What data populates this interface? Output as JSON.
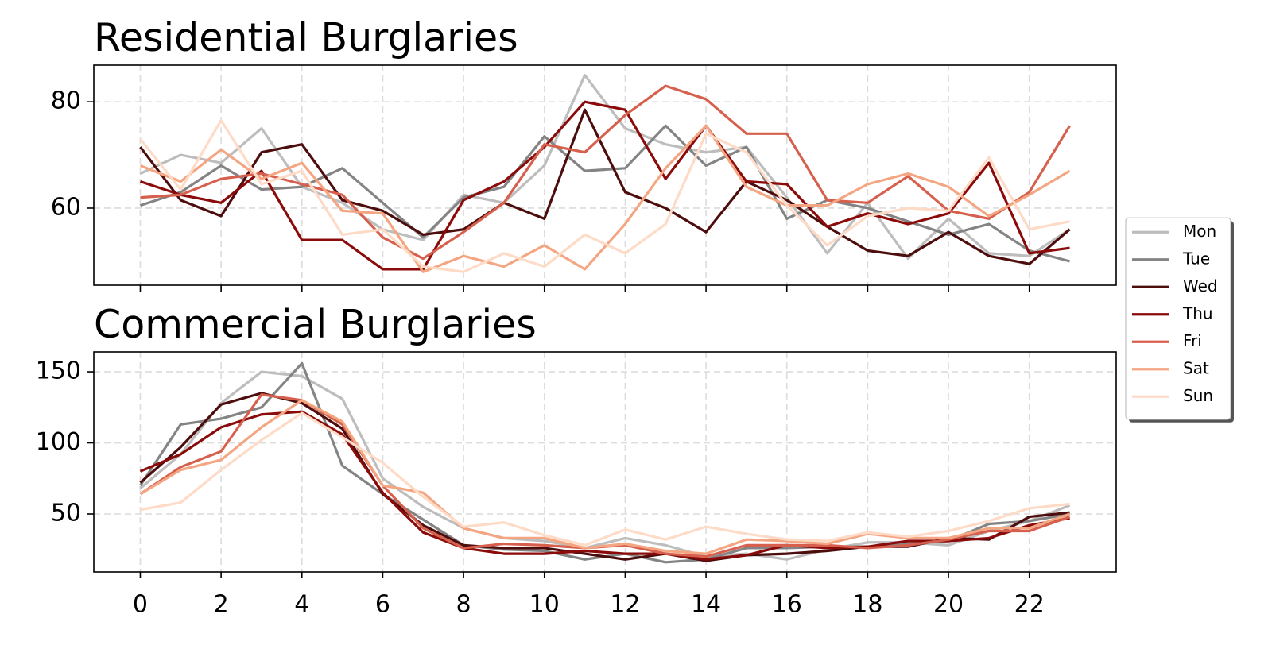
{
  "chart_data": [
    {
      "type": "line",
      "title": "Residential Burglaries",
      "x": [
        0,
        1,
        2,
        3,
        4,
        5,
        6,
        7,
        8,
        9,
        10,
        11,
        12,
        13,
        14,
        15,
        16,
        17,
        18,
        19,
        20,
        21,
        22,
        23
      ],
      "xlim": [
        -1.15,
        24.15
      ],
      "xticks": [
        0,
        2,
        4,
        6,
        8,
        10,
        12,
        14,
        16,
        18,
        20,
        22
      ],
      "ylim": [
        45.5,
        86.9
      ],
      "yticks": [
        60,
        80
      ],
      "grid": true,
      "legend": "right",
      "series": [
        {
          "name": "Mon",
          "color": "#bdbdbd",
          "values": [
            66.5,
            70,
            68.5,
            75,
            64,
            61,
            56,
            54,
            62.5,
            61,
            68,
            85,
            75,
            72,
            70.5,
            71.5,
            62,
            51.5,
            61,
            50.5,
            58,
            51.5,
            51,
            56
          ]
        },
        {
          "name": "Tue",
          "color": "#848484",
          "values": [
            60.5,
            63,
            68,
            63.5,
            64,
            67.5,
            61,
            54.5,
            62,
            64,
            73.5,
            67,
            67.5,
            75.5,
            68,
            71.5,
            58,
            61.5,
            60,
            57.5,
            55,
            57,
            52,
            50
          ]
        },
        {
          "name": "Wed",
          "color": "#4d0d0d",
          "values": [
            71.5,
            61.5,
            58.5,
            70.5,
            72,
            61.5,
            59.5,
            55,
            56,
            61,
            58,
            78.5,
            63,
            60,
            55.5,
            65,
            61.5,
            56.5,
            52,
            51,
            55.5,
            51,
            49.5,
            56
          ]
        },
        {
          "name": "Thu",
          "color": "#8b0a0a",
          "values": [
            65,
            62.5,
            61,
            67,
            54,
            54,
            48.5,
            48.5,
            61.5,
            65,
            71.5,
            80,
            78.5,
            65.5,
            75.5,
            65,
            64.5,
            56.5,
            59,
            57,
            59,
            68.5,
            51.5,
            52.5
          ]
        },
        {
          "name": "Fri",
          "color": "#d6604d",
          "values": [
            62,
            62.5,
            65.5,
            66.5,
            64.5,
            62.5,
            54.5,
            50.5,
            55.5,
            61,
            72,
            70.5,
            77.5,
            83,
            80.5,
            74,
            74,
            61.5,
            61,
            66,
            59.5,
            58,
            63,
            75.5
          ]
        },
        {
          "name": "Sat",
          "color": "#f4a582",
          "values": [
            68,
            65,
            71,
            65.5,
            68.5,
            59.5,
            59,
            48,
            51,
            49,
            53,
            48.5,
            57,
            67.5,
            75.5,
            64,
            60.5,
            60.5,
            64.5,
            66.5,
            64,
            58.5,
            62.5,
            67
          ]
        },
        {
          "name": "Sun",
          "color": "#fddbc7",
          "values": [
            73,
            63.5,
            76.5,
            64.5,
            67,
            55,
            56,
            49,
            48,
            51.5,
            49,
            55,
            51.5,
            57,
            74,
            70.5,
            60.5,
            53,
            58.5,
            60,
            59.5,
            69.5,
            56,
            57.5
          ]
        }
      ]
    },
    {
      "type": "line",
      "title": "Commercial Burglaries",
      "x": [
        0,
        1,
        2,
        3,
        4,
        5,
        6,
        7,
        8,
        9,
        10,
        11,
        12,
        13,
        14,
        15,
        16,
        17,
        18,
        19,
        20,
        21,
        22,
        23
      ],
      "xlim": [
        -1.15,
        24.15
      ],
      "xticks": [
        0,
        2,
        4,
        6,
        8,
        10,
        12,
        14,
        16,
        18,
        20,
        22
      ],
      "ylim": [
        9.2,
        164
      ],
      "yticks": [
        50,
        100,
        150
      ],
      "grid": true,
      "series": [
        {
          "color": "#bdbdbd",
          "values": [
            68,
            92,
            128,
            150,
            147,
            131,
            75,
            55,
            40,
            33,
            31,
            26,
            33,
            28,
            20,
            22,
            18,
            25,
            30,
            30,
            28,
            38,
            45,
            56
          ]
        },
        {
          "color": "#848484",
          "values": [
            70,
            113,
            117,
            125,
            156,
            84,
            64,
            46,
            28,
            25,
            24,
            18,
            22,
            16,
            18,
            26,
            26,
            27,
            27,
            29,
            31,
            43,
            45,
            50
          ]
        },
        {
          "color": "#4d0d0d",
          "values": [
            72,
            97,
            127,
            135,
            128,
            110,
            64,
            42,
            28,
            26,
            26,
            22,
            18,
            22,
            17,
            21,
            22,
            24,
            27,
            27,
            33,
            32,
            48,
            51
          ]
        },
        {
          "color": "#8b0a0a",
          "values": [
            80,
            92,
            111,
            120,
            122,
            106,
            65,
            37,
            26,
            22,
            22,
            24,
            22,
            22,
            18,
            21,
            28,
            26,
            27,
            31,
            31,
            33,
            42,
            47
          ]
        },
        {
          "color": "#d6604d",
          "values": [
            64,
            83,
            94,
            134,
            130,
            113,
            70,
            40,
            26,
            29,
            28,
            26,
            28,
            22,
            20,
            28,
            28,
            28,
            26,
            28,
            32,
            38,
            38,
            48
          ]
        },
        {
          "color": "#f4a582",
          "values": [
            64,
            81,
            88,
            111,
            130,
            115,
            70,
            65,
            40,
            33,
            33,
            26,
            29,
            24,
            22,
            32,
            31,
            29,
            36,
            33,
            33,
            40,
            40,
            50
          ]
        },
        {
          "color": "#fddbc7",
          "values": [
            53,
            58,
            81,
            102,
            121,
            104,
            86,
            62,
            41,
            44,
            35,
            28,
            39,
            32,
            41,
            36,
            32,
            31,
            37,
            34,
            38,
            45,
            54,
            57
          ]
        }
      ]
    }
  ]
}
